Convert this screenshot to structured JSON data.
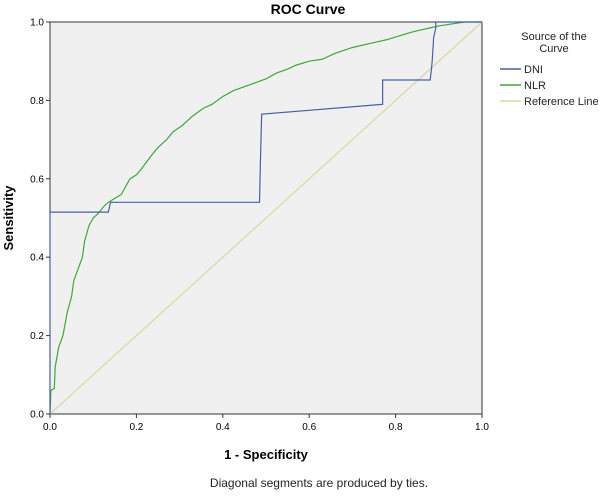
{
  "chart_data": {
    "type": "line",
    "title": "ROC Curve",
    "xlabel": "1 - Specificity",
    "ylabel": "Sensitivity",
    "xlim": [
      0,
      1
    ],
    "ylim": [
      0,
      1
    ],
    "x_ticks": [
      "0.0",
      "0.2",
      "0.4",
      "0.6",
      "0.8",
      "1.0"
    ],
    "y_ticks": [
      "0.0",
      "0.2",
      "0.4",
      "0.6",
      "0.8",
      "1.0"
    ],
    "grid": false,
    "legend": {
      "title": "Source of the Curve",
      "placement": "right"
    },
    "footnote": "Diagonal segments are produced by ties.",
    "series": [
      {
        "name": "DNI",
        "color": "#4a5fa8",
        "points": [
          [
            0,
            0
          ],
          [
            0,
            0.515
          ],
          [
            0.135,
            0.515
          ],
          [
            0.14,
            0.54
          ],
          [
            0.485,
            0.54
          ],
          [
            0.487,
            0.64
          ],
          [
            0.49,
            0.765
          ],
          [
            0.77,
            0.79
          ],
          [
            0.77,
            0.852
          ],
          [
            0.88,
            0.852
          ],
          [
            0.883,
            0.88
          ],
          [
            0.885,
            0.905
          ],
          [
            0.888,
            0.96
          ],
          [
            0.893,
            0.985
          ],
          [
            0.893,
            1.0
          ],
          [
            1,
            1
          ]
        ]
      },
      {
        "name": "NLR",
        "color": "#3aaa35",
        "points": [
          [
            0,
            0
          ],
          [
            0.002,
            0.06
          ],
          [
            0.01,
            0.065
          ],
          [
            0.012,
            0.12
          ],
          [
            0.02,
            0.17
          ],
          [
            0.03,
            0.2
          ],
          [
            0.04,
            0.26
          ],
          [
            0.05,
            0.3
          ],
          [
            0.055,
            0.34
          ],
          [
            0.065,
            0.37
          ],
          [
            0.075,
            0.4
          ],
          [
            0.08,
            0.44
          ],
          [
            0.09,
            0.48
          ],
          [
            0.1,
            0.5
          ],
          [
            0.11,
            0.51
          ],
          [
            0.125,
            0.53
          ],
          [
            0.135,
            0.54
          ],
          [
            0.15,
            0.55
          ],
          [
            0.165,
            0.56
          ],
          [
            0.175,
            0.58
          ],
          [
            0.185,
            0.6
          ],
          [
            0.2,
            0.61
          ],
          [
            0.215,
            0.63
          ],
          [
            0.235,
            0.66
          ],
          [
            0.25,
            0.68
          ],
          [
            0.27,
            0.7
          ],
          [
            0.285,
            0.72
          ],
          [
            0.305,
            0.735
          ],
          [
            0.33,
            0.76
          ],
          [
            0.355,
            0.78
          ],
          [
            0.375,
            0.79
          ],
          [
            0.4,
            0.81
          ],
          [
            0.425,
            0.825
          ],
          [
            0.45,
            0.835
          ],
          [
            0.475,
            0.845
          ],
          [
            0.5,
            0.855
          ],
          [
            0.525,
            0.87
          ],
          [
            0.55,
            0.88
          ],
          [
            0.57,
            0.89
          ],
          [
            0.6,
            0.9
          ],
          [
            0.63,
            0.905
          ],
          [
            0.66,
            0.92
          ],
          [
            0.7,
            0.935
          ],
          [
            0.74,
            0.945
          ],
          [
            0.78,
            0.955
          ],
          [
            0.81,
            0.965
          ],
          [
            0.84,
            0.975
          ],
          [
            0.86,
            0.98
          ],
          [
            0.88,
            0.985
          ],
          [
            0.9,
            0.99
          ],
          [
            0.93,
            0.995
          ],
          [
            0.96,
            1.0
          ],
          [
            1,
            1
          ]
        ]
      },
      {
        "name": "Reference Line",
        "color": "#d8d8a0",
        "points": [
          [
            0,
            0
          ],
          [
            1,
            1
          ]
        ]
      }
    ]
  }
}
